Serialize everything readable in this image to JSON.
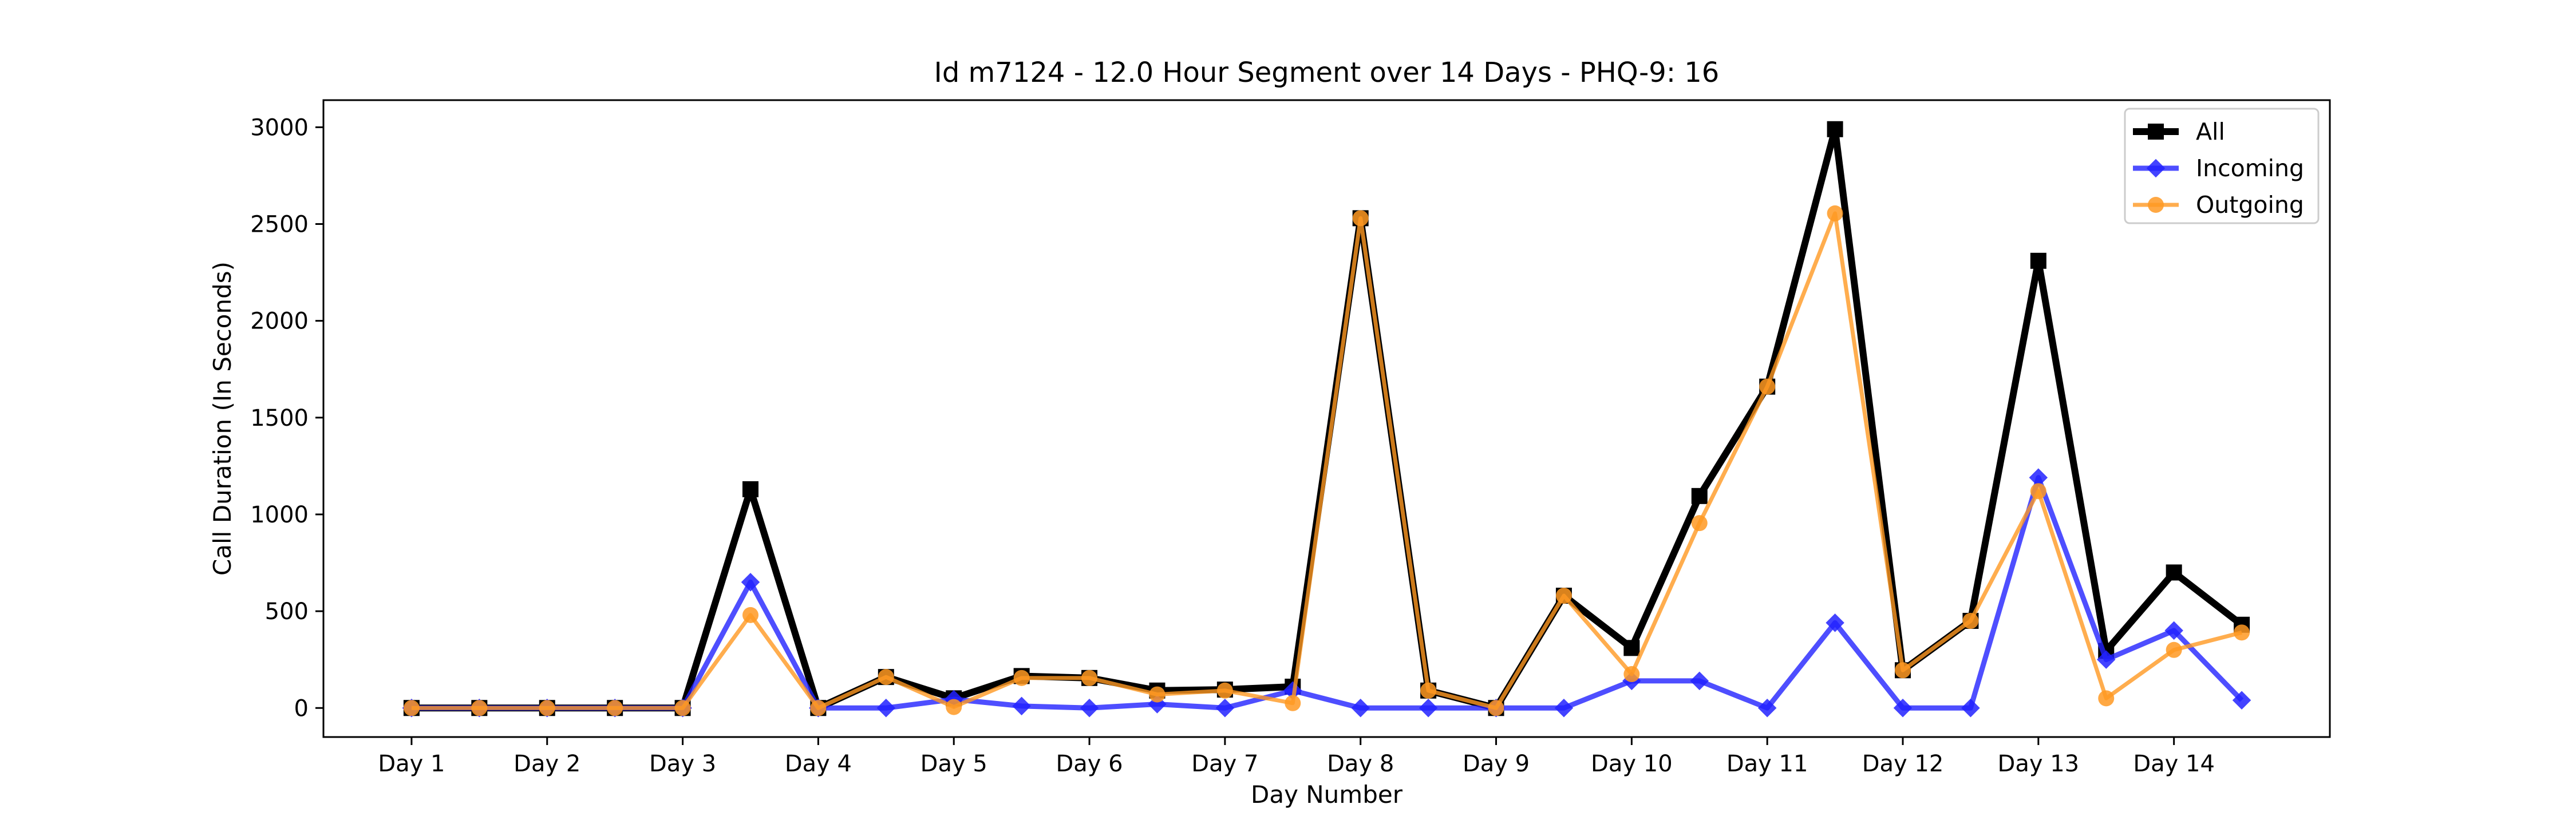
{
  "chart_data": {
    "type": "line",
    "title": "Id m7124 - 12.0 Hour Segment over 14 Days - PHQ-9: 16",
    "xlabel": "Day Number",
    "ylabel": "Call Duration (In Seconds)",
    "x_tick_labels": [
      "Day 1",
      "Day 2",
      "Day 3",
      "Day 4",
      "Day 5",
      "Day 6",
      "Day 7",
      "Day 8",
      "Day 9",
      "Day 10",
      "Day 11",
      "Day 12",
      "Day 13",
      "Day 14"
    ],
    "y_ticks": [
      0,
      500,
      1000,
      1500,
      2000,
      2500,
      3000
    ],
    "xlim": [
      0.35,
      15.15
    ],
    "ylim": [
      -150,
      3140
    ],
    "grid": false,
    "legend_position": "top-right",
    "x": [
      1,
      1.5,
      2,
      2.5,
      3,
      3.5,
      4,
      4.5,
      5,
      5.5,
      6,
      6.5,
      7,
      7.5,
      8,
      8.5,
      9,
      9.5,
      10,
      10.5,
      11,
      11.5,
      12,
      12.5,
      13,
      13.5,
      14,
      14.5
    ],
    "series": [
      {
        "name": "All",
        "color": "#000000",
        "marker": "square",
        "values": [
          0,
          0,
          0,
          0,
          0,
          1130,
          0,
          160,
          50,
          165,
          155,
          90,
          95,
          110,
          2530,
          90,
          0,
          580,
          310,
          1095,
          1660,
          2990,
          195,
          450,
          2310,
          295,
          700,
          430
        ]
      },
      {
        "name": "Incoming",
        "color": "#2222ff",
        "marker": "diamond",
        "values": [
          0,
          0,
          0,
          0,
          0,
          650,
          0,
          0,
          45,
          10,
          0,
          20,
          0,
          90,
          0,
          0,
          0,
          0,
          140,
          140,
          0,
          440,
          0,
          0,
          1190,
          250,
          400,
          40
        ]
      },
      {
        "name": "Outgoing",
        "color": "#ff9922",
        "marker": "circle",
        "values": [
          0,
          0,
          0,
          0,
          0,
          480,
          0,
          160,
          5,
          155,
          155,
          70,
          90,
          25,
          2530,
          90,
          0,
          580,
          175,
          955,
          1660,
          2555,
          195,
          450,
          1120,
          50,
          300,
          390
        ]
      }
    ]
  }
}
